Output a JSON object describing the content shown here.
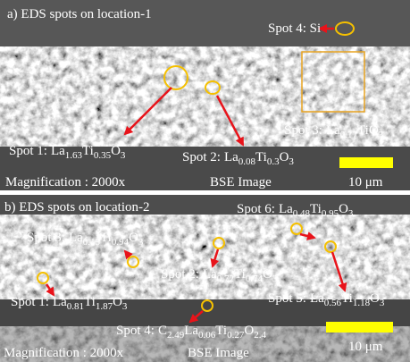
{
  "panels": [
    {
      "title": "a) EDS spots on location-1",
      "annotations": [
        {
          "label": "Spot 4: Si"
        },
        {
          "label": "Spot 1:",
          "formula": [
            {
              "el": "La",
              "sub": "1.63"
            },
            {
              "el": "Ti",
              "sub": "0.35"
            },
            {
              "el": "O",
              "sub": "3"
            }
          ]
        },
        {
          "label": "Spot 2:",
          "formula": [
            {
              "el": "La",
              "sub": "0.08"
            },
            {
              "el": "Ti",
              "sub": "0.3"
            },
            {
              "el": "O",
              "sub": "3"
            }
          ]
        },
        {
          "label": "Spot 3:",
          "formula": [
            {
              "el": "La",
              "sub": "0.17"
            },
            {
              "el": "TiO",
              "sub": "3"
            }
          ]
        }
      ],
      "magnification": "Magnification : 2000x",
      "mode": "BSE Image",
      "scale": "10 μm"
    },
    {
      "title": "b) EDS spots on location-2",
      "annotations": [
        {
          "label": "Spot 6:",
          "formula": [
            {
              "el": "La",
              "sub": "0.48"
            },
            {
              "el": "Ti",
              "sub": "0.95"
            },
            {
              "el": "O",
              "sub": "3"
            }
          ]
        },
        {
          "label": "Spot 3:",
          "formula": [
            {
              "el": "La",
              "sub": "0.15"
            },
            {
              "el": "Ti",
              "sub": "0.94"
            },
            {
              "el": "O",
              "sub": "3"
            }
          ]
        },
        {
          "label": "Spot 2:",
          "formula": [
            {
              "el": "La",
              "sub": "0.72"
            },
            {
              "el": "Ti",
              "sub": "0.74"
            },
            {
              "el": "O",
              "sub": "3"
            }
          ]
        },
        {
          "label": "Spot 1:",
          "formula": [
            {
              "el": "La",
              "sub": "0.81"
            },
            {
              "el": "Ti",
              "sub": "1.87"
            },
            {
              "el": "O",
              "sub": "3"
            }
          ]
        },
        {
          "label": "Spot 5:",
          "formula": [
            {
              "el": "La",
              "sub": "0.56"
            },
            {
              "el": "Ti",
              "sub": "1.18"
            },
            {
              "el": "O",
              "sub": "3"
            }
          ]
        },
        {
          "label": "Spot 4:",
          "formula": [
            {
              "el": "C",
              "sub": "2.49"
            },
            {
              "el": "La",
              "sub": "0.06"
            },
            {
              "el": "Ti",
              "sub": "0.27"
            },
            {
              "el": "O",
              "sub": "2.4"
            }
          ]
        }
      ],
      "magnification": "Magnification : 2000x",
      "mode": "BSE Image",
      "scale": "10 μm"
    }
  ]
}
